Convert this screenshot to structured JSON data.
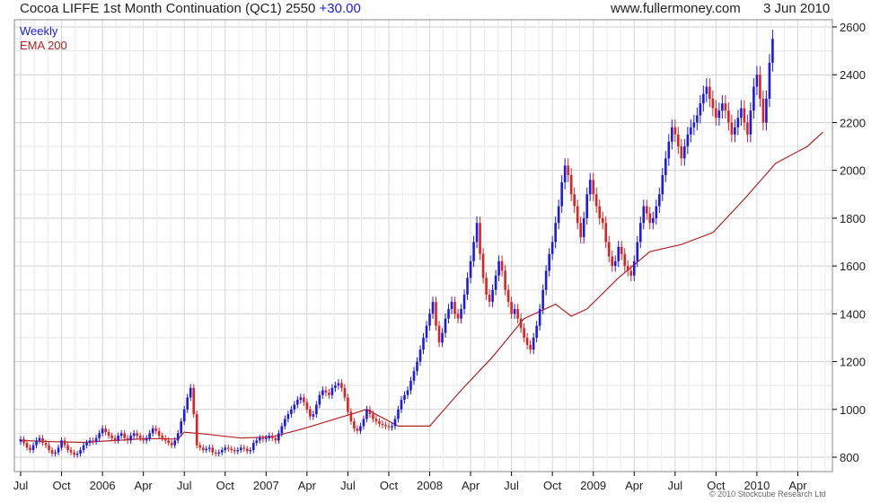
{
  "header": {
    "instrument": "Cocoa LIFFE 1st Month Continuation (QC1)",
    "last": "2550",
    "change": "+30.00",
    "source": "www.fullermoney.com",
    "date": "3 Jun 2010"
  },
  "credit": "© 2010 Stockcube Research Ltd",
  "colors": {
    "up": "#1a1aee",
    "down": "#dd2222",
    "ema": "#b22222",
    "grid": "#d6d6d6",
    "axis": "#000000"
  },
  "chart_data": {
    "type": "line",
    "title": "Cocoa LIFFE 1st Month Continuation (QC1)",
    "legend": [
      "Weekly",
      "EMA 200"
    ],
    "legend_position": "top-left",
    "y_ticks": [
      800,
      1000,
      1200,
      1400,
      1600,
      1800,
      2000,
      2200,
      2400,
      2600
    ],
    "ylim": [
      740,
      2630
    ],
    "x_ticks": [
      "Jul",
      "Oct",
      "2006",
      "Apr",
      "Jul",
      "Oct",
      "2007",
      "Apr",
      "Jul",
      "Oct",
      "2008",
      "Apr",
      "Jul",
      "Oct",
      "2009",
      "Apr",
      "Jul",
      "Oct",
      "2010",
      "Apr"
    ],
    "x_tick_positions": [
      0,
      13,
      26,
      39,
      52,
      65,
      78,
      91,
      104,
      117,
      130,
      143,
      156,
      169,
      182,
      195,
      208,
      221,
      234,
      247
    ],
    "x_range": [
      -2,
      258
    ],
    "grid": true,
    "series": [
      {
        "name": "Weekly",
        "type": "candlestick",
        "closes": [
          875,
          860,
          840,
          830,
          850,
          870,
          880,
          860,
          850,
          830,
          815,
          820,
          840,
          870,
          850,
          830,
          820,
          810,
          815,
          830,
          850,
          860,
          870,
          865,
          880,
          900,
          920,
          905,
          890,
          880,
          870,
          890,
          900,
          880,
          870,
          890,
          900,
          890,
          880,
          870,
          880,
          900,
          920,
          910,
          890,
          880,
          870,
          860,
          850,
          870,
          900,
          950,
          1000,
          1050,
          1090,
          980,
          850,
          840,
          830,
          835,
          840,
          820,
          815,
          820,
          830,
          840,
          835,
          830,
          825,
          830,
          840,
          835,
          825,
          830,
          860,
          870,
          880,
          875,
          880,
          890,
          880,
          870,
          900,
          930,
          960,
          980,
          1000,
          1020,
          1040,
          1050,
          1030,
          1000,
          970,
          980,
          1020,
          1060,
          1080,
          1070,
          1060,
          1090,
          1100,
          1110,
          1090,
          1050,
          990,
          950,
          920,
          910,
          930,
          960,
          1000,
          980,
          960,
          950,
          940,
          935,
          930,
          925,
          930,
          960,
          1000,
          1040,
          1060,
          1080,
          1120,
          1160,
          1200,
          1250,
          1300,
          1350,
          1400,
          1450,
          1350,
          1280,
          1320,
          1380,
          1420,
          1450,
          1400,
          1380,
          1420,
          1480,
          1550,
          1620,
          1700,
          1780,
          1650,
          1550,
          1480,
          1450,
          1500,
          1560,
          1620,
          1580,
          1500,
          1450,
          1400,
          1420,
          1380,
          1340,
          1300,
          1270,
          1250,
          1300,
          1350,
          1420,
          1500,
          1580,
          1650,
          1700,
          1780,
          1850,
          1950,
          2020,
          1980,
          1900,
          1850,
          1780,
          1720,
          1800,
          1900,
          1960,
          1900,
          1850,
          1800,
          1780,
          1700,
          1640,
          1600,
          1620,
          1680,
          1650,
          1600,
          1580,
          1560,
          1620,
          1700,
          1780,
          1850,
          1820,
          1780,
          1800,
          1850,
          1900,
          1980,
          2050,
          2120,
          2180,
          2150,
          2100,
          2050,
          2100,
          2150,
          2180,
          2200,
          2230,
          2280,
          2320,
          2350,
          2300,
          2260,
          2220,
          2250,
          2280,
          2250,
          2200,
          2150,
          2180,
          2220,
          2260,
          2200,
          2150,
          2250,
          2350,
          2400,
          2300,
          2200,
          2300,
          2450,
          2550
        ],
        "ohlc_source": "closes; open = previous close, high/low = max/min(open, close) ± 1.5% of close"
      },
      {
        "name": "EMA 200",
        "type": "line",
        "x": [
          0,
          10,
          20,
          30,
          40,
          50,
          52,
          60,
          70,
          80,
          90,
          100,
          110,
          120,
          130,
          140,
          150,
          160,
          170,
          175,
          180,
          190,
          200,
          210,
          220,
          230,
          240,
          250,
          255
        ],
        "values": [
          870,
          865,
          862,
          870,
          878,
          876,
          905,
          895,
          880,
          885,
          920,
          960,
          1000,
          930,
          930,
          1080,
          1220,
          1380,
          1440,
          1390,
          1420,
          1550,
          1660,
          1690,
          1740,
          1880,
          2030,
          2100,
          2160
        ]
      }
    ]
  }
}
